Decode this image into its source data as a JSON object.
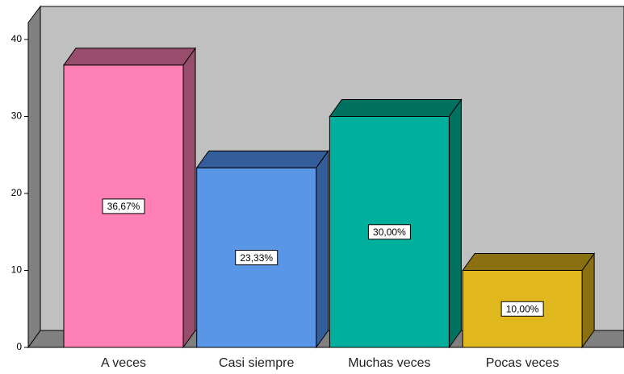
{
  "chart_data": {
    "type": "bar3d",
    "categories": [
      "A veces",
      "Casi siempre",
      "Muchas veces",
      "Pocas veces"
    ],
    "values": [
      36.67,
      23.33,
      30,
      10
    ],
    "value_labels": [
      "36,67%",
      "23,33%",
      "30,00%",
      "10,00%"
    ],
    "colors": [
      "#ff80b4",
      "#5a96e6",
      "#00b09c",
      "#e0b81e"
    ],
    "side_colors": [
      "#994d6c",
      "#335e99",
      "#00705f",
      "#8a7010"
    ],
    "ylim": [
      0,
      40
    ],
    "yticks": [
      0,
      10,
      20,
      30,
      40
    ]
  }
}
